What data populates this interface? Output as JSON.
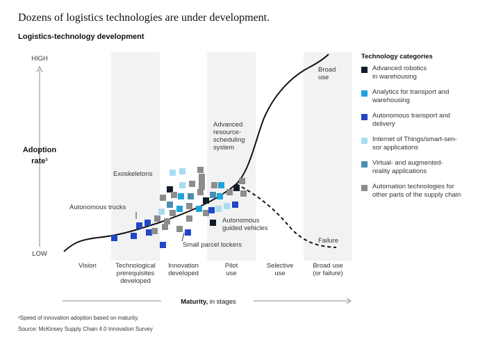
{
  "header": {
    "title": "Dozens of logistics technologies are under development.",
    "subtitle": "Logistics-technology development"
  },
  "y_axis": {
    "high": "HIGH",
    "low": "LOW",
    "label": [
      "Adoption",
      "rate¹"
    ]
  },
  "x_axis": {
    "label_bold": "Maturity,",
    "label_rest": " in stages"
  },
  "stages": [
    [
      "Vision"
    ],
    [
      "Technological",
      "prerequisites",
      "developed"
    ],
    [
      "Innovation",
      "developed"
    ],
    [
      "Pilot",
      "use"
    ],
    [
      "Selective",
      "use"
    ],
    [
      "Broad use",
      "(or failure)"
    ]
  ],
  "annotations": {
    "exoskeletons": [
      "Exoskeletons"
    ],
    "trucks": [
      "Autonomous trucks"
    ],
    "scheduling": [
      "Advanced",
      "resource-",
      "scheduling",
      "system"
    ],
    "agv": [
      "Autonomous",
      "guided vehicles"
    ],
    "lockers": [
      "Small parcel lockers"
    ],
    "broad": [
      "Broad",
      "use"
    ],
    "failure": [
      "Failure"
    ]
  },
  "legend": {
    "title": "Technology categories",
    "items": [
      {
        "label": [
          "Advanced robotics",
          "in warehousing"
        ],
        "color": "#111d2b"
      },
      {
        "label": [
          "Analytics for transport and",
          "warehousing"
        ],
        "color": "#1fa3dd"
      },
      {
        "label": [
          "Autonomous transport and",
          "delivery"
        ],
        "color": "#2345c7"
      },
      {
        "label": [
          "Internet of Things/smart-sen-",
          "sor applications"
        ],
        "color": "#a9dcef"
      },
      {
        "label": [
          "Virtual- and augmented-",
          "reality applications"
        ],
        "color": "#4a8db0"
      },
      {
        "label": [
          "Automation technologies for",
          "other parts of the supply chain"
        ],
        "color": "#8c8c8c"
      }
    ]
  },
  "footnote": "¹Speed of innovation adoption based on maturity.",
  "source": "Source: McKinsey Supply Chain 4.0 Innovation Survey"
}
